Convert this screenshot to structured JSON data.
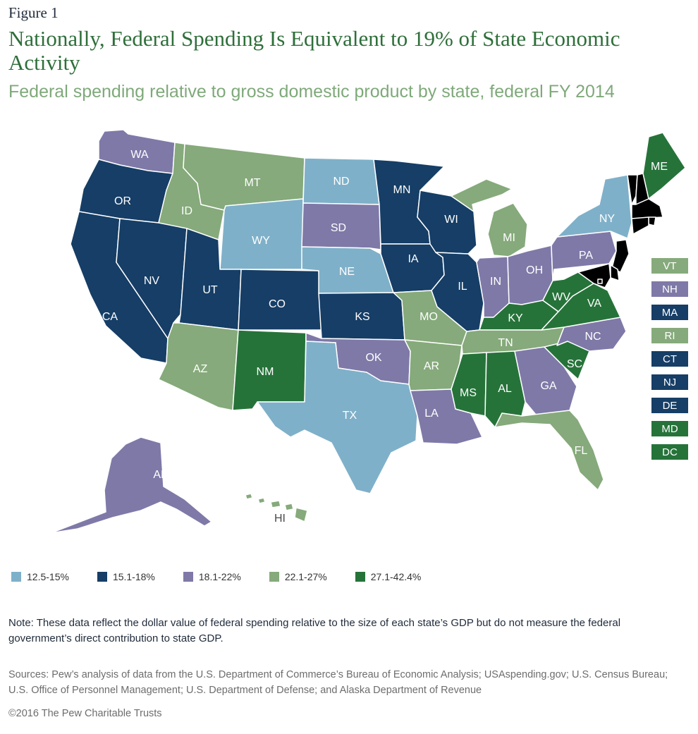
{
  "header": {
    "figure_label": "Figure 1",
    "title": "Nationally, Federal Spending Is Equivalent to 19% of State Economic Activity",
    "subtitle": "Federal spending relative to gross domestic product by state, federal FY 2014"
  },
  "colors": {
    "c1": "#7fb0c9",
    "c2": "#163e66",
    "c3": "#7f79a8",
    "c4": "#86aa7b",
    "c5": "#26733a"
  },
  "legend": [
    {
      "label": "12.5-15%",
      "color_key": "c1"
    },
    {
      "label": "15.1-18%",
      "color_key": "c2"
    },
    {
      "label": "18.1-22%",
      "color_key": "c3"
    },
    {
      "label": "22.1-27%",
      "color_key": "c4"
    },
    {
      "label": "27.1-42.4%",
      "color_key": "c5"
    }
  ],
  "states": {
    "WA": {
      "label": "WA",
      "category": "c3"
    },
    "OR": {
      "label": "OR",
      "category": "c2"
    },
    "CA": {
      "label": "CA",
      "category": "c2"
    },
    "ID": {
      "label": "ID",
      "category": "c4"
    },
    "NV": {
      "label": "NV",
      "category": "c2"
    },
    "MT": {
      "label": "MT",
      "category": "c4"
    },
    "WY": {
      "label": "WY",
      "category": "c1"
    },
    "UT": {
      "label": "UT",
      "category": "c2"
    },
    "AZ": {
      "label": "AZ",
      "category": "c4"
    },
    "CO": {
      "label": "CO",
      "category": "c2"
    },
    "NM": {
      "label": "NM",
      "category": "c5"
    },
    "ND": {
      "label": "ND",
      "category": "c1"
    },
    "SD": {
      "label": "SD",
      "category": "c3"
    },
    "NE": {
      "label": "NE",
      "category": "c1"
    },
    "KS": {
      "label": "KS",
      "category": "c2"
    },
    "OK": {
      "label": "OK",
      "category": "c3"
    },
    "TX": {
      "label": "TX",
      "category": "c1"
    },
    "MN": {
      "label": "MN",
      "category": "c2"
    },
    "IA": {
      "label": "IA",
      "category": "c2"
    },
    "MO": {
      "label": "MO",
      "category": "c4"
    },
    "AR": {
      "label": "AR",
      "category": "c4"
    },
    "LA": {
      "label": "LA",
      "category": "c3"
    },
    "WI": {
      "label": "WI",
      "category": "c2"
    },
    "IL": {
      "label": "IL",
      "category": "c2"
    },
    "MI": {
      "label": "MI",
      "category": "c4"
    },
    "IN": {
      "label": "IN",
      "category": "c3"
    },
    "OH": {
      "label": "OH",
      "category": "c3"
    },
    "KY": {
      "label": "KY",
      "category": "c5"
    },
    "TN": {
      "label": "TN",
      "category": "c4"
    },
    "MS": {
      "label": "MS",
      "category": "c5"
    },
    "AL": {
      "label": "AL",
      "category": "c5"
    },
    "GA": {
      "label": "GA",
      "category": "c3"
    },
    "FL": {
      "label": "FL",
      "category": "c4"
    },
    "SC": {
      "label": "SC",
      "category": "c5"
    },
    "NC": {
      "label": "NC",
      "category": "c3"
    },
    "VA": {
      "label": "VA",
      "category": "c5"
    },
    "WV": {
      "label": "WV",
      "category": "c5"
    },
    "PA": {
      "label": "PA",
      "category": "c3"
    },
    "NY": {
      "label": "NY",
      "category": "c1"
    },
    "ME": {
      "label": "ME",
      "category": "c5"
    },
    "AK": {
      "label": "AK",
      "category": "c3"
    },
    "HI": {
      "label": "HI",
      "category": "c4"
    }
  },
  "callouts": [
    {
      "label": "VT",
      "category": "c4"
    },
    {
      "label": "NH",
      "category": "c3"
    },
    {
      "label": "MA",
      "category": "c2"
    },
    {
      "label": "RI",
      "category": "c4"
    },
    {
      "label": "CT",
      "category": "c2"
    },
    {
      "label": "NJ",
      "category": "c2"
    },
    {
      "label": "DE",
      "category": "c2"
    },
    {
      "label": "MD",
      "category": "c5"
    },
    {
      "label": "DC",
      "category": "c5"
    }
  ],
  "note": "Note: These data reflect the dollar value of federal spending relative to the size of each state’s GDP but do not measure the federal government’s direct contribution to state GDP.",
  "sources": "Sources: Pew’s analysis of data from the U.S. Department of Commerce’s Bureau of Economic Analysis; USAspending.gov; U.S. Census Bureau; U.S. Office of Personnel Management; U.S. Department of Defense; and Alaska Department of Revenue",
  "copyright": "©2016  The Pew Charitable Trusts"
}
